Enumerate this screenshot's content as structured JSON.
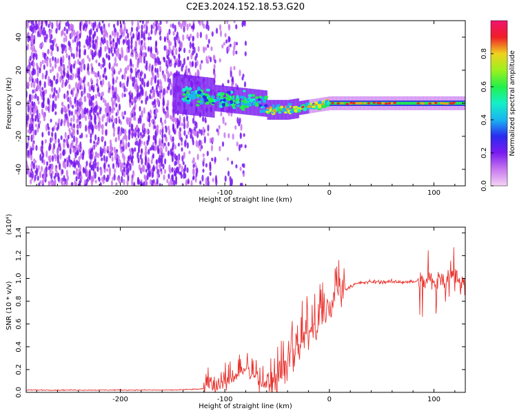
{
  "title": "C2E3.2024.152.18.53.G20",
  "colors": {
    "snr_line": "#e8332f",
    "cmap": [
      "#f4c8f4",
      "#c878f0",
      "#7a1bf0",
      "#2a2af0",
      "#1ab4f0",
      "#14f0c8",
      "#22f04a",
      "#d8f01e",
      "#f0a01e",
      "#f01e28",
      "#f0146e"
    ]
  },
  "chart_data": [
    {
      "type": "heatmap",
      "title": "C2E3.2024.152.18.53.G20",
      "xlabel": "Height of straight line (km)",
      "ylabel": "Frequency (Hz)",
      "xlim": [
        -290,
        130
      ],
      "ylim": [
        -50,
        50
      ],
      "xticks": [
        -200,
        -100,
        0,
        100
      ],
      "yticks": [
        -40,
        -20,
        0,
        20,
        40
      ],
      "colorbar": {
        "label": "Normalized spectral amplitude",
        "range": [
          0.0,
          1.0
        ],
        "ticks": [
          "0.0",
          "0.2",
          "0.4",
          "0.6",
          "0.8"
        ]
      },
      "features": [
        {
          "name": "noise",
          "x_range": [
            -290,
            -115
          ],
          "freq_range": [
            -50,
            50
          ]
        },
        {
          "name": "signal-band",
          "x_range": [
            -150,
            130
          ],
          "center_freq": 0
        }
      ]
    },
    {
      "type": "line",
      "xlabel": "Height of straight line (km)",
      "ylabel": "SNR (10 * v/v)",
      "multiplier": "(x10⁴)",
      "xlim": [
        -290,
        130
      ],
      "ylim": [
        0,
        1.45
      ],
      "xticks": [
        -200,
        -100,
        0,
        100
      ],
      "yticks": [
        "0.0",
        "0.2",
        "0.4",
        "0.6",
        "0.8",
        "1.0",
        "1.2",
        "1.4"
      ],
      "series": [
        {
          "x": [
            -290,
            -250,
            -200,
            -150,
            -120,
            -105,
            -95,
            -88,
            -82,
            -78,
            -72,
            -65,
            -58,
            -50,
            -45,
            -40,
            -35,
            -30,
            -25,
            -20,
            -15,
            -10,
            -5,
            0,
            5,
            10,
            15,
            20,
            25,
            30,
            40,
            50,
            60,
            70,
            80,
            88,
            92,
            96,
            100,
            104,
            108,
            112,
            116,
            120,
            125,
            130
          ],
          "y": [
            0.02,
            0.02,
            0.02,
            0.02,
            0.03,
            0.06,
            0.1,
            0.15,
            0.2,
            0.18,
            0.12,
            0.08,
            0.07,
            0.06,
            0.15,
            0.22,
            0.28,
            0.38,
            0.45,
            0.5,
            0.55,
            0.6,
            0.68,
            0.75,
            0.8,
            0.86,
            0.9,
            0.93,
            0.95,
            0.96,
            0.97,
            0.97,
            0.97,
            0.97,
            0.97,
            0.98,
            0.96,
            1.02,
            0.95,
            1.05,
            0.98,
            1.0,
            1.1,
            0.96,
            0.95,
            0.95
          ]
        }
      ]
    }
  ]
}
